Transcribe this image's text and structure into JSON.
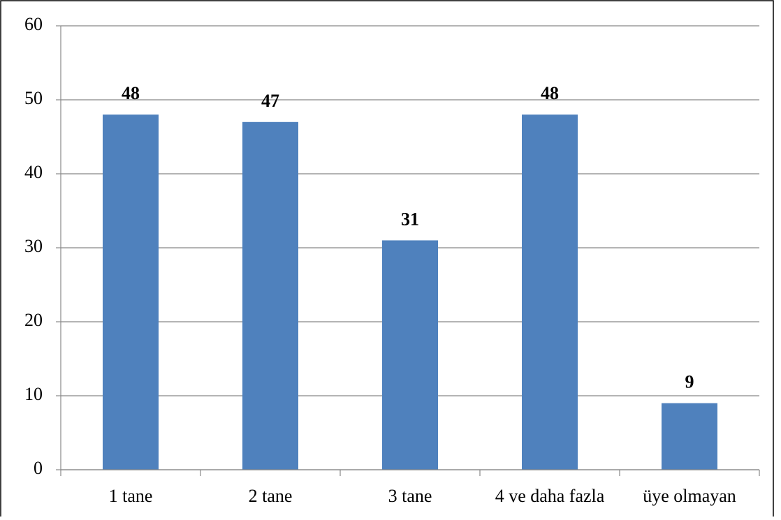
{
  "chart_data": {
    "type": "bar",
    "categories": [
      "1 tane",
      "2 tane",
      "3 tane",
      "4 ve daha fazla",
      "üye olmayan"
    ],
    "values": [
      48,
      47,
      31,
      48,
      9
    ],
    "color": "#4f81bd",
    "ylim": [
      0,
      60
    ],
    "yticks": [
      0,
      10,
      20,
      30,
      40,
      50,
      60
    ],
    "grid": true
  }
}
